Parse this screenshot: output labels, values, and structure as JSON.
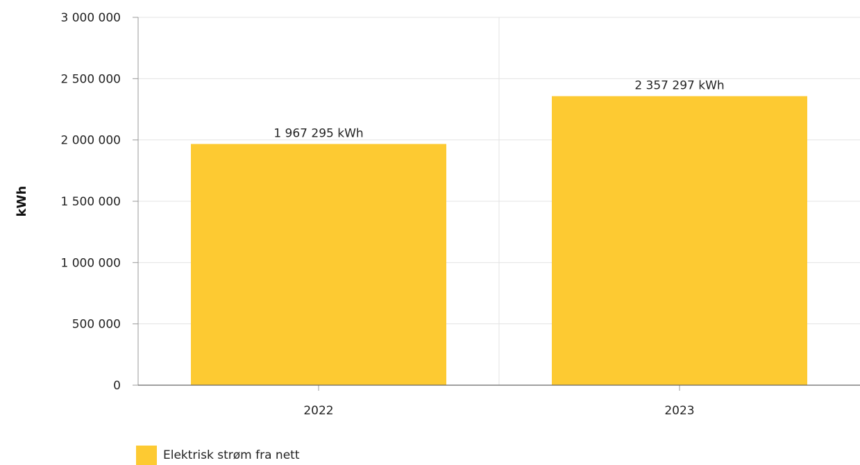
{
  "chart_data": {
    "type": "bar",
    "categories": [
      "2022",
      "2023"
    ],
    "series": [
      {
        "name": "Elektrisk strøm fra nett",
        "values": [
          1967295,
          2357297
        ],
        "data_labels": [
          "1 967 295 kWh",
          "2 357 297 kWh"
        ],
        "color": "#fdca32"
      }
    ],
    "ylabel": "kWh",
    "xlabel": "",
    "ylim": [
      0,
      3000000
    ],
    "yticks": [
      0,
      500000,
      1000000,
      1500000,
      2000000,
      2500000,
      3000000
    ],
    "ytick_labels": [
      "0",
      "500 000",
      "1 000 000",
      "1 500 000",
      "2 000 000",
      "2 500 000",
      "3 000 000"
    ],
    "grid": true,
    "legend_position": "bottom-left"
  }
}
